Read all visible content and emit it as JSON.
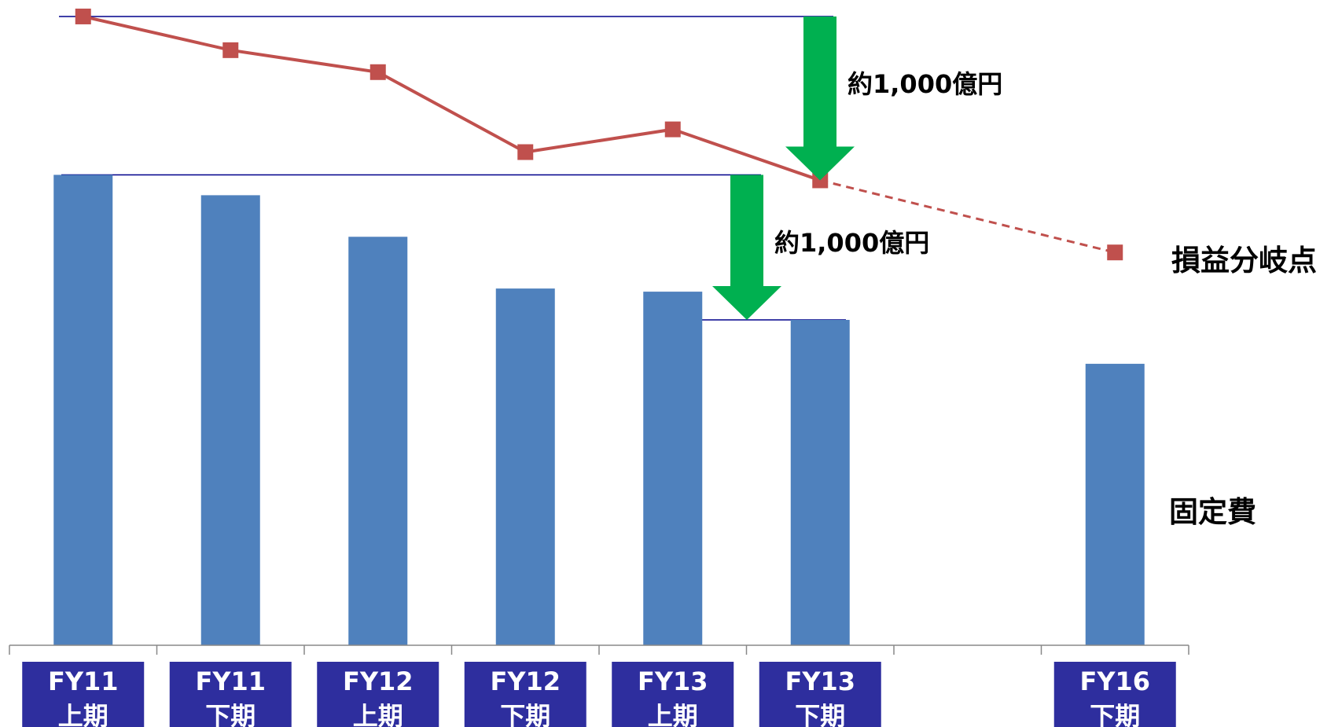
{
  "chart_data": {
    "type": "bar",
    "categories": [
      {
        "line1": "FY11",
        "line2": "上期"
      },
      {
        "line1": "FY11",
        "line2": "下期"
      },
      {
        "line1": "FY12",
        "line2": "上期"
      },
      {
        "line1": "FY12",
        "line2": "下期"
      },
      {
        "line1": "FY13",
        "line2": "上期"
      },
      {
        "line1": "FY13",
        "line2": "下期"
      },
      {
        "line1": "",
        "line2": ""
      },
      {
        "line1": "FY16",
        "line2": "下期"
      }
    ],
    "series": [
      {
        "name": "固定費",
        "type": "bar",
        "color": "#4f81bd",
        "values": [
          6000,
          5740,
          5210,
          4550,
          4510,
          4150,
          null,
          3590
        ]
      },
      {
        "name": "損益分岐点",
        "type": "line",
        "color": "#c0504d",
        "values": [
          8020,
          7590,
          7310,
          6290,
          6580,
          5930,
          null,
          5010
        ],
        "projected_from_index": 5
      }
    ],
    "annotations": [
      {
        "text": "約1,000億円",
        "from_value": 8020,
        "to_value": 5930,
        "arrow_color": "#00b050"
      },
      {
        "text": "約1,000億円",
        "from_value": 6000,
        "to_value": 4150,
        "arrow_color": "#00b050"
      }
    ],
    "label_box_color": "#2e2e9e",
    "ref_line_color": "#00008b",
    "ylim": [
      0,
      8230
    ],
    "title": "",
    "xlabel": "",
    "ylabel": "",
    "legend": "right"
  }
}
